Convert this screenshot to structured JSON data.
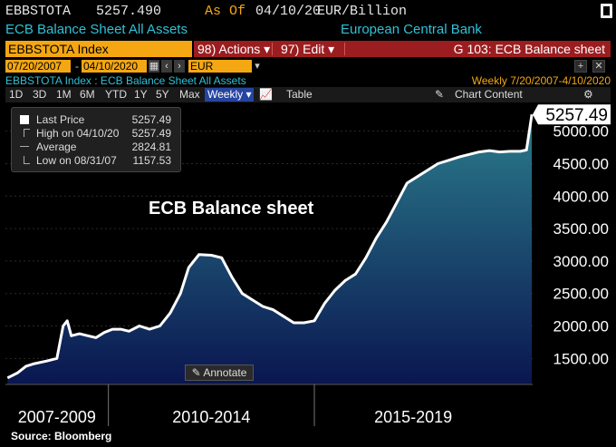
{
  "header": {
    "ticker": "EBBSTOTA",
    "last_value": "5257.490",
    "as_of_label": "As Of",
    "as_of_date": "04/10/20",
    "units": "EUR/Billion",
    "security_name": "ECB Balance Sheet All Assets",
    "source_name": "European Central Bank"
  },
  "command_bar": {
    "index_label": "EBBSTOTA Index",
    "actions_label": "98) Actions ▾",
    "edit_label": "97) Edit ▾",
    "function_label": "G 103: ECB Balance sheet"
  },
  "date_range": {
    "start": "07/20/2007",
    "end": "04/10/2020",
    "currency": "EUR"
  },
  "subtitle": {
    "left": "EBBSTOTA Index : ECB Balance Sheet All Assets",
    "right": "Weekly  7/20/2007-4/10/2020"
  },
  "toolbar": {
    "periods": [
      "1D",
      "3D",
      "1M",
      "6M",
      "YTD",
      "1Y",
      "5Y",
      "Max"
    ],
    "frequency": "Weekly ▾",
    "table_label": "Table",
    "chart_content_label": "Chart Content"
  },
  "legend": {
    "rows": [
      {
        "label": "Last Price",
        "value": "5257.49"
      },
      {
        "label": "High on 04/10/20",
        "value": "5257.49"
      },
      {
        "label": "Average",
        "value": "2824.81"
      },
      {
        "label": "Low on 08/31/07",
        "value": "1157.53"
      }
    ]
  },
  "annotate_label": "Annotate",
  "source_label": "Source: Bloomberg",
  "colors": {
    "accent_amber": "#f4a712",
    "bar_red": "#9b1d20",
    "cyan_text": "#2fc1d6",
    "line_white": "#ffffff",
    "area_top": "#2b7c8c",
    "area_bottom": "#0a1650"
  },
  "chart_data": {
    "type": "area",
    "title": "ECB Balance sheet",
    "ylabel": "",
    "ylim": [
      1100,
      5400
    ],
    "y_ticks": [
      "1500.00",
      "2000.00",
      "2500.00",
      "3000.00",
      "3500.00",
      "4000.00",
      "4500.00",
      "5000.00"
    ],
    "last_value_label": "5257.49",
    "x_period_labels": [
      "2007-2009",
      "2010-2014",
      "2015-2019"
    ],
    "series": [
      {
        "name": "Last Price",
        "x": [
          2007.55,
          2007.8,
          2008.0,
          2008.2,
          2008.5,
          2008.75,
          2008.9,
          2009.0,
          2009.1,
          2009.3,
          2009.5,
          2009.7,
          2009.9,
          2010.1,
          2010.3,
          2010.5,
          2010.75,
          2011.0,
          2011.25,
          2011.5,
          2011.75,
          2011.95,
          2012.2,
          2012.5,
          2012.75,
          2013.0,
          2013.25,
          2013.5,
          2013.75,
          2014.0,
          2014.25,
          2014.5,
          2014.75,
          2015.0,
          2015.25,
          2015.5,
          2015.75,
          2016.0,
          2016.25,
          2016.5,
          2016.75,
          2017.0,
          2017.25,
          2017.5,
          2017.75,
          2018.0,
          2018.25,
          2018.5,
          2018.75,
          2019.0,
          2019.25,
          2019.5,
          2019.75,
          2020.0,
          2020.15,
          2020.28
        ],
        "values": [
          1200,
          1280,
          1380,
          1420,
          1460,
          1500,
          2000,
          2080,
          1850,
          1880,
          1850,
          1820,
          1900,
          1950,
          1950,
          1920,
          2000,
          1950,
          2000,
          2200,
          2500,
          2900,
          3100,
          3090,
          3050,
          2750,
          2500,
          2400,
          2300,
          2250,
          2150,
          2050,
          2050,
          2080,
          2350,
          2550,
          2700,
          2800,
          3050,
          3350,
          3600,
          3900,
          4200,
          4300,
          4400,
          4500,
          4550,
          4600,
          4640,
          4680,
          4700,
          4680,
          4690,
          4690,
          4710,
          5257.49
        ]
      }
    ]
  }
}
